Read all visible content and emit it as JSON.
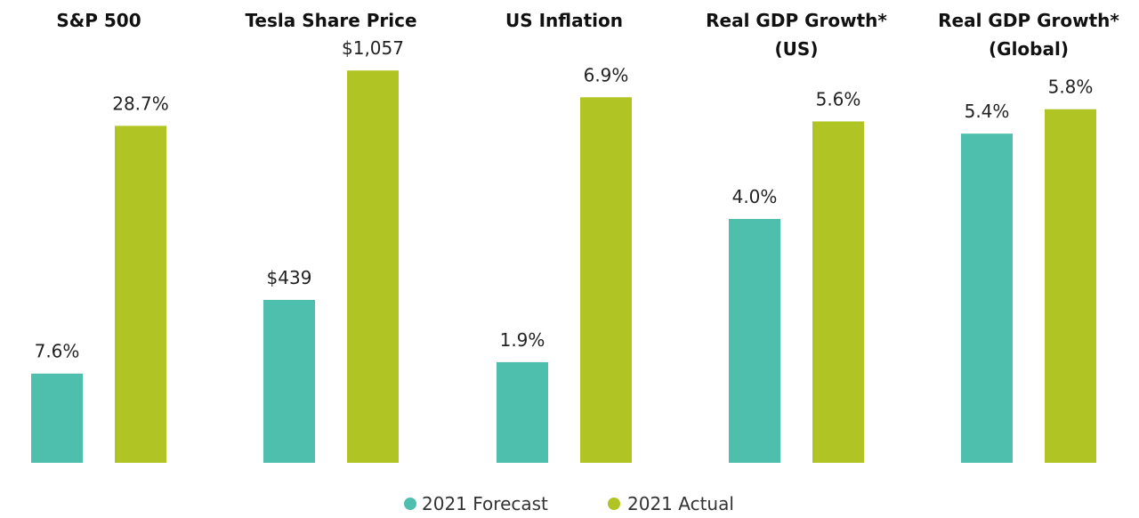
{
  "chart_data": {
    "type": "bar",
    "categories": [
      {
        "title_lines": [
          "S&P 500"
        ],
        "forecast": 7.6,
        "forecast_label": "7.6%",
        "actual": 28.7,
        "actual_label": "28.7%"
      },
      {
        "title_lines": [
          "Tesla Share Price"
        ],
        "forecast": 439,
        "forecast_label": "$439",
        "actual": 1057,
        "actual_label": "$1,057"
      },
      {
        "title_lines": [
          "US Inflation"
        ],
        "forecast": 1.9,
        "forecast_label": "1.9%",
        "actual": 6.9,
        "actual_label": "6.9%"
      },
      {
        "title_lines": [
          "Real GDP Growth*",
          "(US)"
        ],
        "forecast": 4.0,
        "forecast_label": "4.0%",
        "actual": 5.6,
        "actual_label": "5.6%"
      },
      {
        "title_lines": [
          "Real GDP Growth*",
          "(Global)"
        ],
        "forecast": 5.4,
        "forecast_label": "5.4%",
        "actual": 5.8,
        "actual_label": "5.8%"
      }
    ],
    "series": [
      {
        "name": "2021 Forecast",
        "key": "forecast",
        "color": "#4fbfad"
      },
      {
        "name": "2021 Actual",
        "key": "actual",
        "color": "#b0c424"
      }
    ],
    "scales": [
      {
        "max": 37.9
      },
      {
        "max": 1199
      },
      {
        "max": 8.4
      },
      {
        "max": 7.3
      },
      {
        "max": 7.3
      }
    ],
    "legend_position": "bottom-center",
    "grid": false,
    "axes_visible": false
  }
}
